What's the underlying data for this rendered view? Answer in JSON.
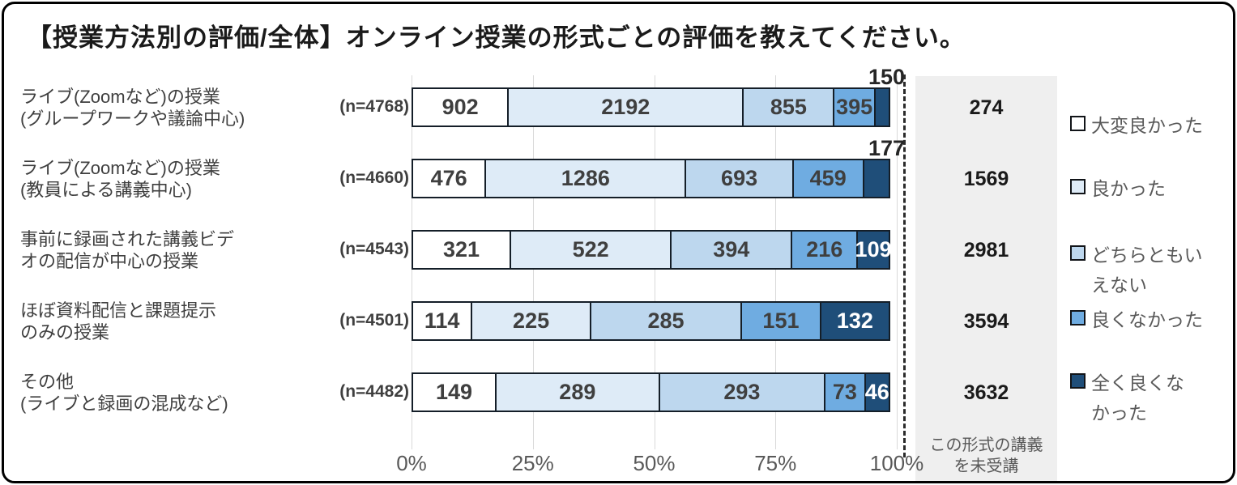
{
  "title": "【授業方法別の評価/全体】オンライン授業の形式ごとの評価を教えてください。",
  "colors": {
    "series": [
      "#FFFFFF",
      "#DEEBF7",
      "#BDD7EE",
      "#6FACE1",
      "#1F4E79"
    ],
    "segment_border": "#141E28",
    "value_label_dark": "#3F3F3F",
    "value_label_light": "#FFFFFF",
    "gridline": "#D9D9D9",
    "panel_bg": "#EFEFEF",
    "axis_text": "#595959",
    "frame_border": "#000000"
  },
  "chart_data": {
    "type": "bar",
    "stacked": true,
    "orientation": "horizontal",
    "x_axis": {
      "ticks": [
        "0%",
        "25%",
        "50%",
        "75%",
        "100%"
      ],
      "range_percent": [
        0,
        100
      ]
    },
    "categories": [
      {
        "label_lines": [
          "ライブ(Zoomなど)の授業",
          "(グループワークや議論中心)"
        ],
        "n_label": "(n=4768)"
      },
      {
        "label_lines": [
          "ライブ(Zoomなど)の授業",
          "(教員による講義中心)"
        ],
        "n_label": "(n=4660)"
      },
      {
        "label_lines": [
          "事前に録画された講義ビデ",
          "オの配信が中心の授業"
        ],
        "n_label": "(n=4543)"
      },
      {
        "label_lines": [
          "ほぼ資料配信と課題提示",
          "のみの授業"
        ],
        "n_label": "(n=4501)"
      },
      {
        "label_lines": [
          "その他",
          "(ライブと録画の混成など)"
        ],
        "n_label": "(n=4482)"
      }
    ],
    "series": [
      {
        "name": "大変良かった",
        "values": [
          902,
          476,
          321,
          114,
          149
        ]
      },
      {
        "name": "良かった",
        "values": [
          2192,
          1286,
          522,
          225,
          289
        ]
      },
      {
        "name": "どちらともいえない",
        "values": [
          855,
          693,
          394,
          285,
          293
        ]
      },
      {
        "name": "良くなかった",
        "values": [
          395,
          459,
          216,
          151,
          73
        ]
      },
      {
        "name": "全く良くなかった",
        "values": [
          150,
          177,
          109,
          132,
          46
        ]
      }
    ],
    "outside_last_label_rows": [
      0,
      1
    ],
    "not_attended_column": {
      "values": [
        274,
        1569,
        2981,
        3594,
        3632
      ],
      "footer_lines": [
        "この形式の講義",
        "を未受講"
      ]
    }
  },
  "legend": {
    "items": [
      {
        "label": "大変良かった",
        "lines": [
          "大変良かった"
        ]
      },
      {
        "label": "良かった",
        "lines": [
          "良かった"
        ]
      },
      {
        "label": "どちらともいえない",
        "lines": [
          "どちらともい",
          "えない"
        ]
      },
      {
        "label": "良くなかった",
        "lines": [
          "良くなかった"
        ]
      },
      {
        "label": "全く良くなかった",
        "lines": [
          "全く良くな",
          "かった"
        ]
      }
    ]
  }
}
